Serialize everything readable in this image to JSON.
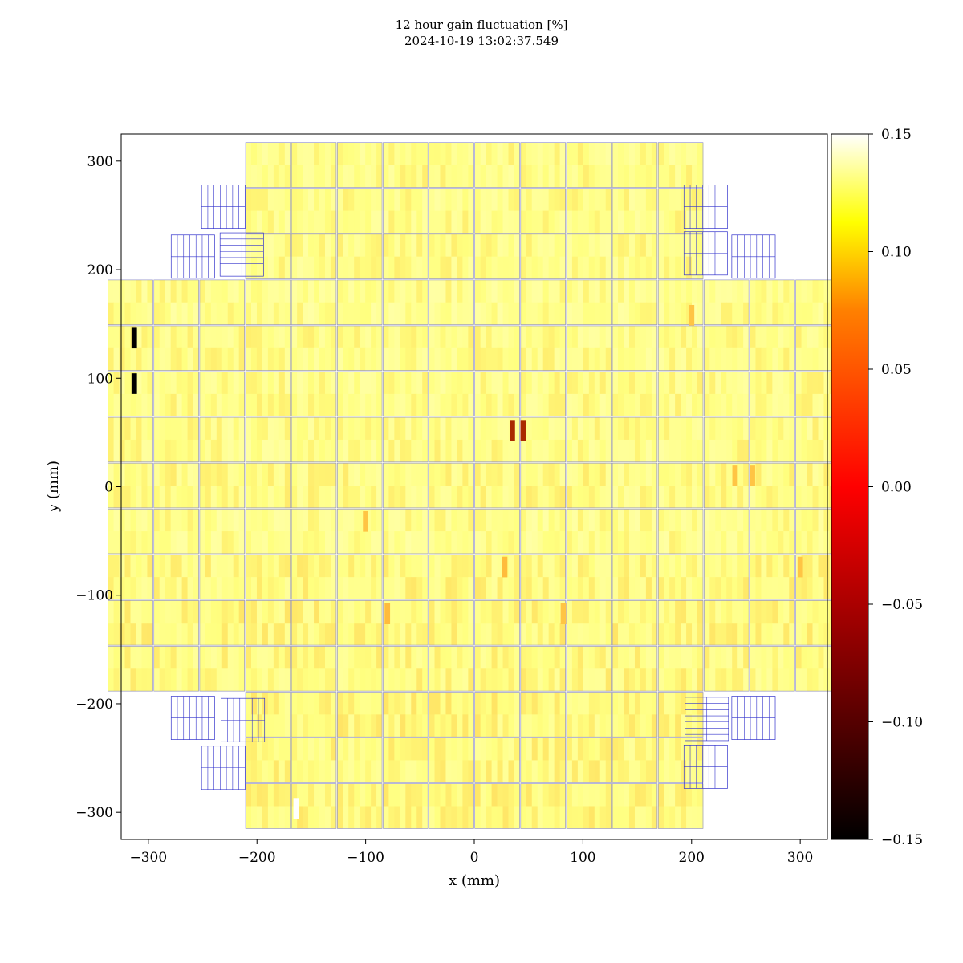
{
  "chart_data": {
    "type": "heatmap",
    "title": "12 hour gain fluctuation [%]",
    "subtitle": "2024-10-19 13:02:37.549",
    "xlabel": "x (mm)",
    "ylabel": "y (mm)",
    "xlim": [
      -325,
      325
    ],
    "ylim": [
      -325,
      325
    ],
    "x_ticks": [
      -300,
      -200,
      -100,
      0,
      100,
      200,
      300
    ],
    "x_tick_labels": [
      "−300",
      "−200",
      "−100",
      "0",
      "100",
      "200",
      "300"
    ],
    "y_ticks": [
      300,
      200,
      100,
      0,
      -100,
      -200,
      -300
    ],
    "y_tick_labels": [
      "300",
      "200",
      "100",
      "0",
      "−100",
      "−200",
      "−300"
    ],
    "colorbar": {
      "colormap": "afmhot",
      "range": [
        -0.15,
        0.15
      ],
      "ticks": [
        0.15,
        0.1,
        0.05,
        0.0,
        -0.05,
        -0.1,
        -0.15
      ],
      "tick_labels": [
        "0.15",
        "0.10",
        "0.05",
        "0.00",
        "−0.05",
        "−0.10",
        "−0.15"
      ]
    },
    "grid": false,
    "cell_pitch_mm": 42.2,
    "rows": [
      {
        "y": 296.5,
        "x_from": -189.9,
        "x_to": 189.9,
        "mean": 0.08
      },
      {
        "y": 254.3,
        "x_from": -189.9,
        "x_to": 189.9,
        "mean": 0.08
      },
      {
        "y": 212.1,
        "x_from": -189.9,
        "x_to": 189.9,
        "mean": 0.08
      },
      {
        "y": 169.9,
        "x_from": -316.5,
        "x_to": 316.5,
        "mean": 0.082
      },
      {
        "y": 127.7,
        "x_from": -316.5,
        "x_to": 316.5,
        "mean": 0.08
      },
      {
        "y": 85.5,
        "x_from": -316.5,
        "x_to": 316.5,
        "mean": 0.08
      },
      {
        "y": 43.3,
        "x_from": -316.5,
        "x_to": 316.5,
        "mean": 0.08
      },
      {
        "y": 1.1,
        "x_from": -316.5,
        "x_to": 316.5,
        "mean": 0.078
      },
      {
        "y": -41.1,
        "x_from": -316.5,
        "x_to": 316.5,
        "mean": 0.082
      },
      {
        "y": -83.3,
        "x_from": -316.5,
        "x_to": 316.5,
        "mean": 0.076
      },
      {
        "y": -125.5,
        "x_from": -316.5,
        "x_to": 316.5,
        "mean": 0.074
      },
      {
        "y": -167.7,
        "x_from": -316.5,
        "x_to": 316.5,
        "mean": 0.076
      },
      {
        "y": -209.9,
        "x_from": -189.9,
        "x_to": 189.9,
        "mean": 0.074
      },
      {
        "y": -252.1,
        "x_from": -189.9,
        "x_to": 189.9,
        "mean": 0.076
      },
      {
        "y": -294.3,
        "x_from": -189.9,
        "x_to": 189.9,
        "mean": 0.074
      }
    ],
    "anomalies": [
      {
        "x": -313,
        "y": 137,
        "value": -0.15
      },
      {
        "x": -313,
        "y": 95,
        "value": -0.15
      },
      {
        "x": 35,
        "y": 52,
        "value": -0.05
      },
      {
        "x": 45,
        "y": 52,
        "value": -0.05
      },
      {
        "x": -164,
        "y": -297,
        "value": 0.15
      },
      {
        "x": 200,
        "y": 158,
        "value": 0.04
      },
      {
        "x": 240,
        "y": 10,
        "value": 0.04
      },
      {
        "x": 256,
        "y": 10,
        "value": 0.04
      },
      {
        "x": -100,
        "y": -32,
        "value": 0.04
      },
      {
        "x": -80,
        "y": -117,
        "value": 0.035
      },
      {
        "x": 28,
        "y": -74,
        "value": 0.035
      },
      {
        "x": 82,
        "y": -117,
        "value": 0.04
      },
      {
        "x": 300,
        "y": -74,
        "value": 0.04
      }
    ],
    "empty_modules": [
      {
        "x": -231,
        "y": 258
      },
      {
        "x": -259,
        "y": 212
      },
      {
        "x": -214,
        "y": 214
      },
      {
        "x": 213,
        "y": 258
      },
      {
        "x": 213,
        "y": 215
      },
      {
        "x": 257,
        "y": 212
      },
      {
        "x": -259,
        "y": -213
      },
      {
        "x": -213,
        "y": -215
      },
      {
        "x": 214,
        "y": -214
      },
      {
        "x": 257,
        "y": -213
      },
      {
        "x": -231,
        "y": -259
      },
      {
        "x": 213,
        "y": -258
      }
    ],
    "colors": {
      "module_border": "#8888cc",
      "empty_module_grid": "#3333cc"
    }
  }
}
